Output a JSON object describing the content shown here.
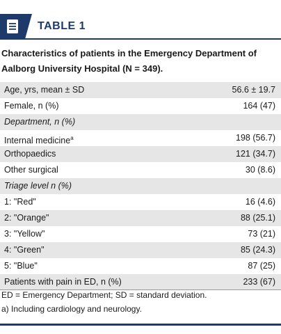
{
  "header": {
    "label": "TABLE 1",
    "icon": "document-icon",
    "accent_color": "#1e3a6b"
  },
  "caption": "Characteristics of patients in the Emergency Department of Aalborg University Hospital (N = 349).",
  "rows": [
    {
      "label": "Age, yrs, mean ± SD",
      "value": "56.6 ± 19.7",
      "kind": "data"
    },
    {
      "label": "Female, n (%)",
      "value": "164 (47)",
      "kind": "data"
    },
    {
      "label": "Department, n (%)",
      "value": "",
      "kind": "section"
    },
    {
      "label": "Internal medicine",
      "sup": "a",
      "value": "198 (56.7)",
      "kind": "data"
    },
    {
      "label": "Orthopaedics",
      "value": "121 (34.7)",
      "kind": "data"
    },
    {
      "label": "Other surgical",
      "value": "30 (8.6)",
      "kind": "data"
    },
    {
      "label": "Triage level n (%)",
      "value": "",
      "kind": "section"
    },
    {
      "label": "1: \"Red\"",
      "value": "16 (4.6)",
      "kind": "data"
    },
    {
      "label": "2: \"Orange\"",
      "value": "88 (25.1)",
      "kind": "data"
    },
    {
      "label": "3: \"Yellow\"",
      "value": "73 (21)",
      "kind": "data"
    },
    {
      "label": "4: \"Green\"",
      "value": "85 (24.3)",
      "kind": "data"
    },
    {
      "label": "5: \"Blue\"",
      "value": "87 (25)",
      "kind": "data"
    },
    {
      "label": "Patients with pain in ED, n (%)",
      "value": "233 (67)",
      "kind": "data"
    }
  ],
  "footnotes": [
    "ED = Emergency Department; SD = standard deviation.",
    "a) Including cardiology and neurology."
  ]
}
